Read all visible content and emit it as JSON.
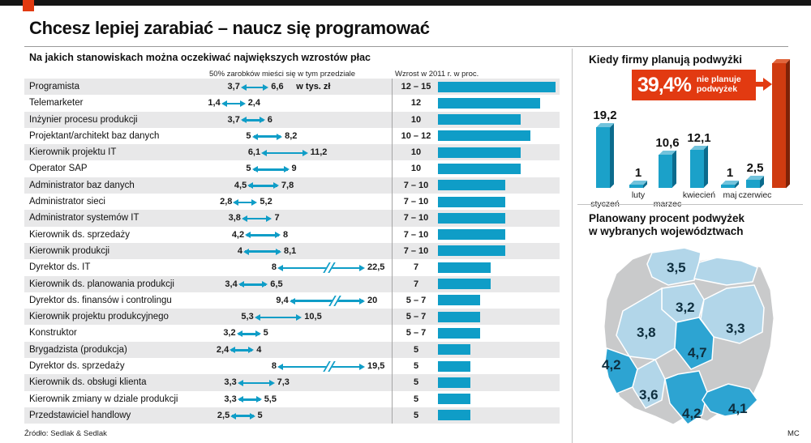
{
  "masthead": {
    "credit": "MC"
  },
  "page": {
    "title": "Chcesz lepiej zarabiać – naucz się programować",
    "source": "Źródło: Sedlak & Sedlak"
  },
  "chart_data": [
    {
      "type": "bar",
      "title": "Na jakich stanowiskach można oczekiwać największych wzrostów płac",
      "range_axis_header": "50% zarobków mieści się w tym przedziale",
      "unit_label": "w tys. zł",
      "growth_header": "Wzrost w 2011 r. w proc.",
      "accent_color": "#0f9dc7",
      "rows": [
        {
          "job": "Programista",
          "min": 3.7,
          "max": 6.6,
          "min_label": "3,7",
          "max_label": "6,6",
          "brk": false,
          "growth_label": "12 – 15",
          "growth_mid": 13.5
        },
        {
          "job": "Telemarketer",
          "min": 1.4,
          "max": 2.4,
          "min_label": "1,4",
          "max_label": "2,4",
          "brk": false,
          "growth_label": "12",
          "growth_mid": 12
        },
        {
          "job": "Inżynier procesu produkcji",
          "min": 3.7,
          "max": 6,
          "min_label": "3,7",
          "max_label": "6",
          "brk": false,
          "growth_label": "10",
          "growth_mid": 10
        },
        {
          "job": "Projektant/architekt baz danych",
          "min": 5,
          "max": 8.2,
          "min_label": "5",
          "max_label": "8,2",
          "brk": false,
          "growth_label": "10 – 12",
          "growth_mid": 11
        },
        {
          "job": "Kierownik projektu IT",
          "min": 6.1,
          "max": 11.2,
          "min_label": "6,1",
          "max_label": "11,2",
          "brk": false,
          "growth_label": "10",
          "growth_mid": 10
        },
        {
          "job": "Operator SAP",
          "min": 5,
          "max": 9,
          "min_label": "5",
          "max_label": "9",
          "brk": false,
          "growth_label": "10",
          "growth_mid": 10
        },
        {
          "job": "Administrator baz danych",
          "min": 4.5,
          "max": 7.8,
          "min_label": "4,5",
          "max_label": "7,8",
          "brk": false,
          "growth_label": "7 – 10",
          "growth_mid": 8.5
        },
        {
          "job": "Administrator sieci",
          "min": 2.8,
          "max": 5.2,
          "min_label": "2,8",
          "max_label": "5,2",
          "brk": false,
          "growth_label": "7 – 10",
          "growth_mid": 8.5
        },
        {
          "job": "Administrator systemów IT",
          "min": 3.8,
          "max": 7,
          "min_label": "3,8",
          "max_label": "7",
          "brk": false,
          "growth_label": "7 – 10",
          "growth_mid": 8.5
        },
        {
          "job": "Kierownik ds. sprzedaży",
          "min": 4.2,
          "max": 8,
          "min_label": "4,2",
          "max_label": "8",
          "brk": false,
          "growth_label": "7 – 10",
          "growth_mid": 8.5
        },
        {
          "job": "Kierownik produkcji",
          "min": 4,
          "max": 8.1,
          "min_label": "4",
          "max_label": "8,1",
          "brk": false,
          "growth_label": "7 – 10",
          "growth_mid": 8.5
        },
        {
          "job": "Dyrektor ds. IT",
          "min": 8,
          "max": 22.5,
          "min_label": "8",
          "max_label": "22,5",
          "brk": true,
          "growth_label": "7",
          "growth_mid": 7
        },
        {
          "job": "Kierownik ds. planowania produkcji",
          "min": 3.4,
          "max": 6.5,
          "min_label": "3,4",
          "max_label": "6,5",
          "brk": false,
          "growth_label": "7",
          "growth_mid": 7
        },
        {
          "job": "Dyrektor ds. finansów i controlingu",
          "min": 9.4,
          "max": 20,
          "min_label": "9,4",
          "max_label": "20",
          "brk": true,
          "growth_label": "5 – 7",
          "growth_mid": 6
        },
        {
          "job": "Kierownik projektu produkcyjnego",
          "min": 5.3,
          "max": 10.5,
          "min_label": "5,3",
          "max_label": "10,5",
          "brk": false,
          "growth_label": "5 – 7",
          "growth_mid": 6
        },
        {
          "job": "Konstruktor",
          "min": 3.2,
          "max": 5,
          "min_label": "3,2",
          "max_label": "5",
          "brk": false,
          "growth_label": "5 – 7",
          "growth_mid": 6
        },
        {
          "job": "Brygadzista (produkcja)",
          "min": 2.4,
          "max": 4,
          "min_label": "2,4",
          "max_label": "4",
          "brk": false,
          "growth_label": "5",
          "growth_mid": 5
        },
        {
          "job": "Dyrektor ds. sprzedaży",
          "min": 8,
          "max": 19.5,
          "min_label": "8",
          "max_label": "19,5",
          "brk": true,
          "growth_label": "5",
          "growth_mid": 5
        },
        {
          "job": "Kierownik ds. obsługi klienta",
          "min": 3.3,
          "max": 7.3,
          "min_label": "3,3",
          "max_label": "7,3",
          "brk": false,
          "growth_label": "5",
          "growth_mid": 5
        },
        {
          "job": "Kierownik zmiany w dziale produkcji",
          "min": 3.3,
          "max": 5.5,
          "min_label": "3,3",
          "max_label": "5,5",
          "brk": false,
          "growth_label": "5",
          "growth_mid": 5
        },
        {
          "job": "Przedstawiciel handlowy",
          "min": 2.5,
          "max": 5,
          "min_label": "2,5",
          "max_label": "5",
          "brk": false,
          "growth_label": "5",
          "growth_mid": 5
        }
      ]
    },
    {
      "type": "bar",
      "title": "Kiedy firmy planują podwyżki",
      "categories": [
        "styczeń",
        "luty",
        "marzec",
        "kwiecień",
        "maj",
        "czerwiec"
      ],
      "values": [
        19.2,
        1,
        10.6,
        12.1,
        1,
        2.5
      ],
      "value_labels": [
        "19,2",
        "1",
        "10,6",
        "12,1",
        "1",
        "2,5"
      ],
      "callout": {
        "value": "39,4%",
        "label": "nie planuje\npodwyżek",
        "numeric": 39.4
      },
      "bar_color": "#1ba1c9",
      "callout_color": "#e23a11"
    },
    {
      "type": "map",
      "title": "Planowany procent podwyżek\nw wybranych województwach",
      "regions": [
        {
          "value": "3,5",
          "pos": [
            107,
            21
          ],
          "highlight": false
        },
        {
          "value": "3,2",
          "pos": [
            118,
            70
          ],
          "highlight": false
        },
        {
          "value": "3,8",
          "pos": [
            70,
            101
          ],
          "highlight": false
        },
        {
          "value": "3,3",
          "pos": [
            180,
            96
          ],
          "highlight": false
        },
        {
          "value": "4,7",
          "pos": [
            133,
            126
          ],
          "highlight": true
        },
        {
          "value": "4,2",
          "pos": [
            27,
            141
          ],
          "highlight": true
        },
        {
          "value": "3,6",
          "pos": [
            73,
            178
          ],
          "highlight": false
        },
        {
          "value": "4,2",
          "pos": [
            126,
            201
          ],
          "highlight": true
        },
        {
          "value": "4,1",
          "pos": [
            183,
            195
          ],
          "highlight": true
        }
      ],
      "colors": {
        "highlight": "#2da4d2",
        "normal": "#b2d6e9",
        "other": "#c9cacb"
      }
    }
  ]
}
